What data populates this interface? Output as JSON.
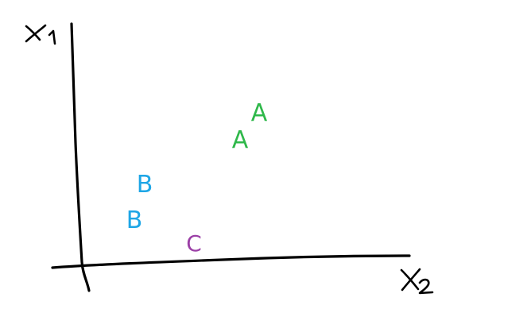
{
  "axes": {
    "vertical_label": "x1",
    "horizontal_label": "x2",
    "stroke_color": "#000000"
  },
  "points": [
    {
      "label": "A",
      "group": "A",
      "color": "#2fb84a"
    },
    {
      "label": "A",
      "group": "A",
      "color": "#2fb84a"
    },
    {
      "label": "B",
      "group": "B",
      "color": "#1ea6e6"
    },
    {
      "label": "B",
      "group": "B",
      "color": "#1ea6e6"
    },
    {
      "label": "C",
      "group": "C",
      "color": "#9b3fa6"
    }
  ]
}
